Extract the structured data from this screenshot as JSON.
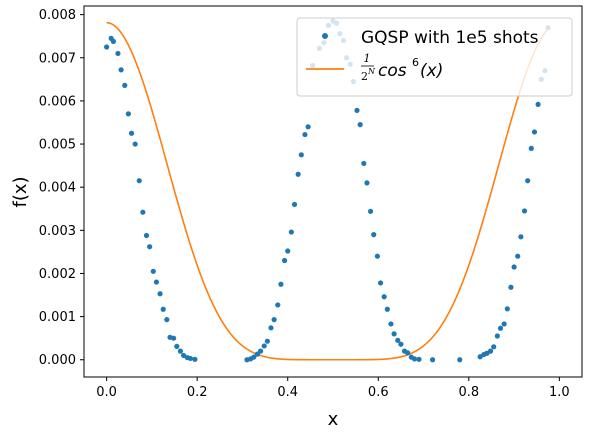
{
  "chart_data": {
    "type": "line+scatter",
    "xlabel": "x",
    "ylabel": "f(x)",
    "xlim": [
      -0.05,
      1.05
    ],
    "ylim": [
      -0.0004,
      0.0082
    ],
    "xticks": [
      "0.0",
      "0.2",
      "0.4",
      "0.6",
      "0.8",
      "1.0"
    ],
    "xtick_values": [
      0.0,
      0.2,
      0.4,
      0.6,
      0.8,
      1.0
    ],
    "yticks": [
      "0.000",
      "0.001",
      "0.002",
      "0.003",
      "0.004",
      "0.005",
      "0.006",
      "0.007",
      "0.008"
    ],
    "ytick_values": [
      0.0,
      0.001,
      0.002,
      0.003,
      0.004,
      0.005,
      0.006,
      0.007,
      0.008
    ],
    "grid": false,
    "legend_position": "top-right",
    "series": [
      {
        "name": "GQSP with 1e5 shots",
        "kind": "scatter",
        "color": "#1f77b4",
        "points": [
          [
            0.0,
            0.00725
          ],
          [
            0.01,
            0.00745
          ],
          [
            0.015,
            0.00738
          ],
          [
            0.025,
            0.0071
          ],
          [
            0.032,
            0.00672
          ],
          [
            0.04,
            0.00636
          ],
          [
            0.048,
            0.0057
          ],
          [
            0.055,
            0.00525
          ],
          [
            0.063,
            0.005
          ],
          [
            0.072,
            0.00415
          ],
          [
            0.08,
            0.00342
          ],
          [
            0.088,
            0.00288
          ],
          [
            0.095,
            0.00262
          ],
          [
            0.103,
            0.00205
          ],
          [
            0.11,
            0.0018
          ],
          [
            0.118,
            0.00153
          ],
          [
            0.125,
            0.00117
          ],
          [
            0.133,
            0.00093
          ],
          [
            0.14,
            0.00052
          ],
          [
            0.148,
            0.0005
          ],
          [
            0.155,
            0.00031
          ],
          [
            0.163,
            0.0002
          ],
          [
            0.17,
            0.0001
          ],
          [
            0.178,
            5e-05
          ],
          [
            0.185,
            3e-05
          ],
          [
            0.195,
            1e-05
          ],
          [
            0.31,
            0.0
          ],
          [
            0.318,
            2e-05
          ],
          [
            0.325,
            6e-05
          ],
          [
            0.333,
            0.00013
          ],
          [
            0.34,
            0.0002
          ],
          [
            0.348,
            0.00032
          ],
          [
            0.355,
            0.00043
          ],
          [
            0.363,
            0.00074
          ],
          [
            0.37,
            0.00093
          ],
          [
            0.378,
            0.00127
          ],
          [
            0.385,
            0.00175
          ],
          [
            0.393,
            0.0023
          ],
          [
            0.4,
            0.00252
          ],
          [
            0.408,
            0.00296
          ],
          [
            0.415,
            0.0036
          ],
          [
            0.423,
            0.0043
          ],
          [
            0.43,
            0.00475
          ],
          [
            0.438,
            0.00522
          ],
          [
            0.445,
            0.0054
          ],
          [
            0.455,
            0.00682
          ],
          [
            0.47,
            0.00722
          ],
          [
            0.48,
            0.00735
          ],
          [
            0.49,
            0.00775
          ],
          [
            0.5,
            0.00785
          ],
          [
            0.508,
            0.0078
          ],
          [
            0.515,
            0.00756
          ],
          [
            0.523,
            0.0074
          ],
          [
            0.53,
            0.007
          ],
          [
            0.538,
            0.00685
          ],
          [
            0.545,
            0.00645
          ],
          [
            0.553,
            0.00578
          ],
          [
            0.56,
            0.00545
          ],
          [
            0.568,
            0.00455
          ],
          [
            0.575,
            0.0041
          ],
          [
            0.583,
            0.00344
          ],
          [
            0.59,
            0.0029
          ],
          [
            0.598,
            0.0024
          ],
          [
            0.605,
            0.00178
          ],
          [
            0.613,
            0.00146
          ],
          [
            0.62,
            0.00117
          ],
          [
            0.628,
            0.00083
          ],
          [
            0.635,
            0.0006
          ],
          [
            0.643,
            0.00045
          ],
          [
            0.65,
            0.00036
          ],
          [
            0.658,
            0.0002
          ],
          [
            0.665,
            0.00016
          ],
          [
            0.673,
            6e-05
          ],
          [
            0.68,
            2e-05
          ],
          [
            0.69,
            1e-05
          ],
          [
            0.72,
            0.0
          ],
          [
            0.78,
            0.0
          ],
          [
            0.825,
            7e-05
          ],
          [
            0.833,
            0.00012
          ],
          [
            0.84,
            0.00015
          ],
          [
            0.848,
            0.0002
          ],
          [
            0.855,
            0.0003
          ],
          [
            0.863,
            0.00055
          ],
          [
            0.87,
            0.00073
          ],
          [
            0.878,
            0.00083
          ],
          [
            0.885,
            0.00118
          ],
          [
            0.893,
            0.00168
          ],
          [
            0.9,
            0.00215
          ],
          [
            0.908,
            0.0024
          ],
          [
            0.915,
            0.00285
          ],
          [
            0.923,
            0.00345
          ],
          [
            0.93,
            0.00415
          ],
          [
            0.938,
            0.0049
          ],
          [
            0.945,
            0.00528
          ],
          [
            0.953,
            0.00592
          ],
          [
            0.96,
            0.0065
          ],
          [
            0.968,
            0.0067
          ],
          [
            0.975,
            0.0077
          ]
        ]
      },
      {
        "name": "1/2^N cos^6(x)",
        "kind": "line",
        "color": "#ff7f0e",
        "legend_math": {
          "num": "1",
          "den_base": "2",
          "den_exp": "N",
          "func": "cos",
          "power": "6",
          "arg": "(x)"
        },
        "function": "0.0078125 * cos(pi*x)^6",
        "x_range": [
          0.0,
          0.975
        ],
        "amplitude": 0.0078125
      }
    ]
  }
}
